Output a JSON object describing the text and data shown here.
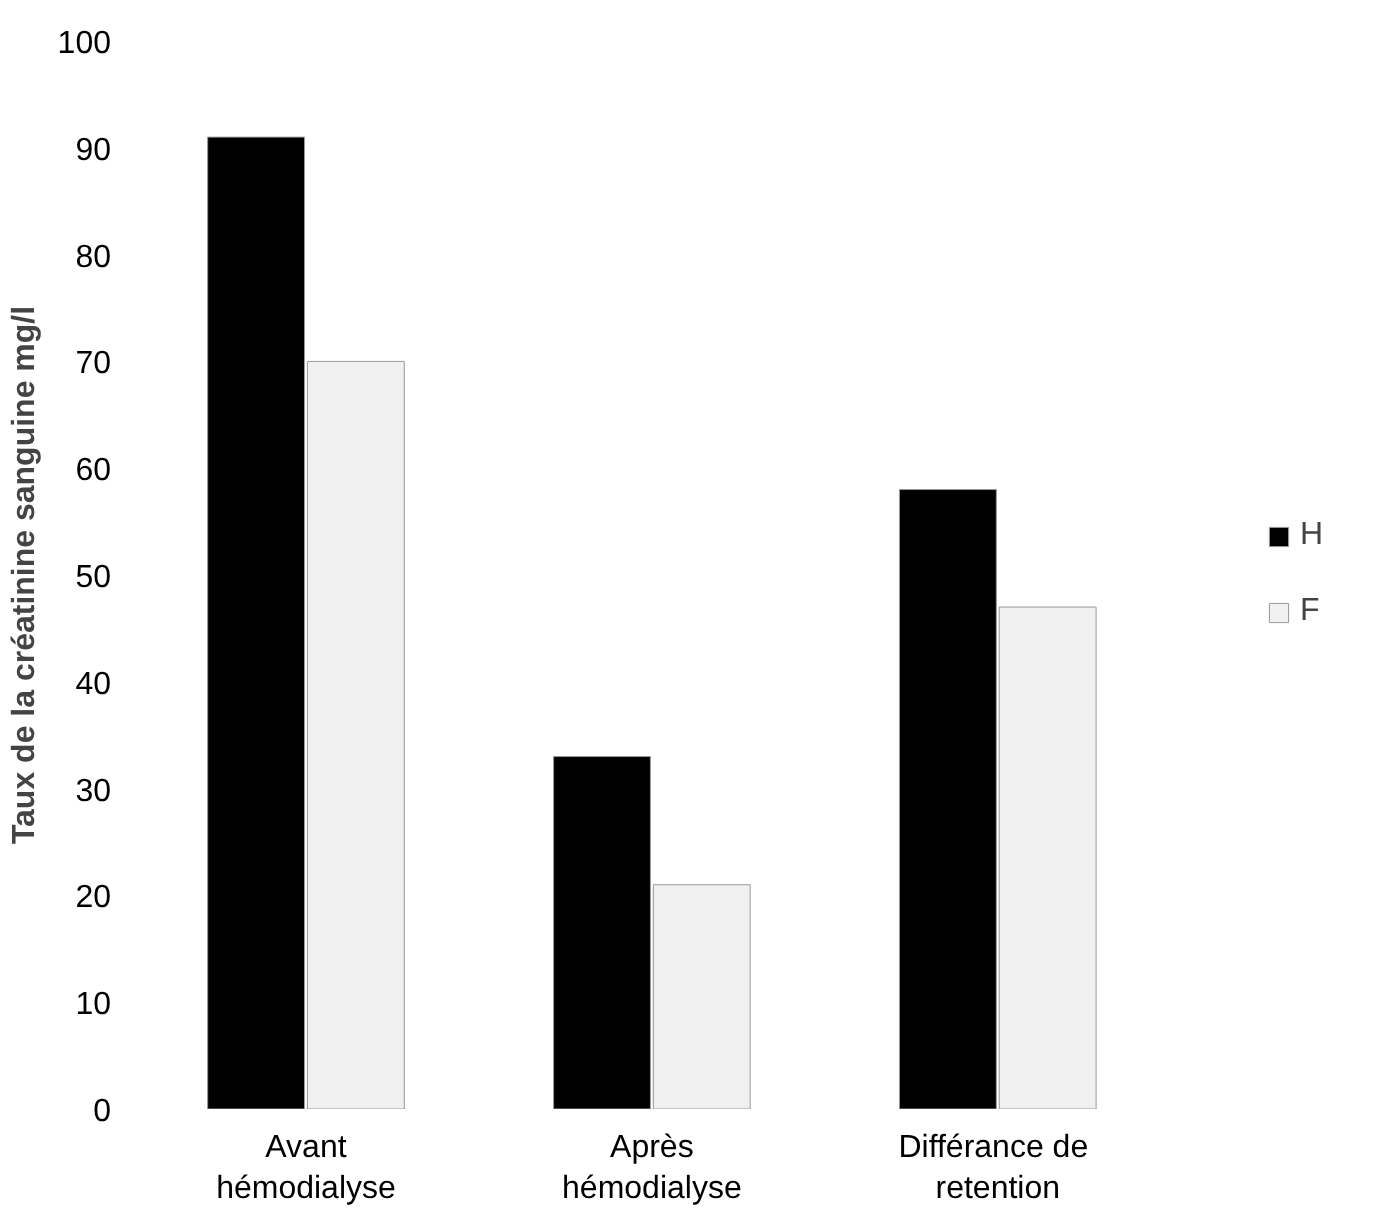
{
  "chart_data": {
    "type": "bar",
    "ylabel": "Taux de la créatinine sanguine mg/l",
    "categories": [
      "Avant\nhémodialyse",
      "Après\nhémodialyse",
      "Différance  de\nretention"
    ],
    "series": [
      {
        "name": "H",
        "color": "#000000",
        "values": [
          91,
          33,
          58
        ]
      },
      {
        "name": "F",
        "color": "#f0f0f0",
        "values": [
          70,
          21,
          47
        ]
      }
    ],
    "ylim": [
      0,
      100
    ],
    "yticks": [
      0,
      10,
      20,
      30,
      40,
      50,
      60,
      70,
      80,
      90,
      100
    ],
    "grid": false,
    "legend": "right"
  }
}
